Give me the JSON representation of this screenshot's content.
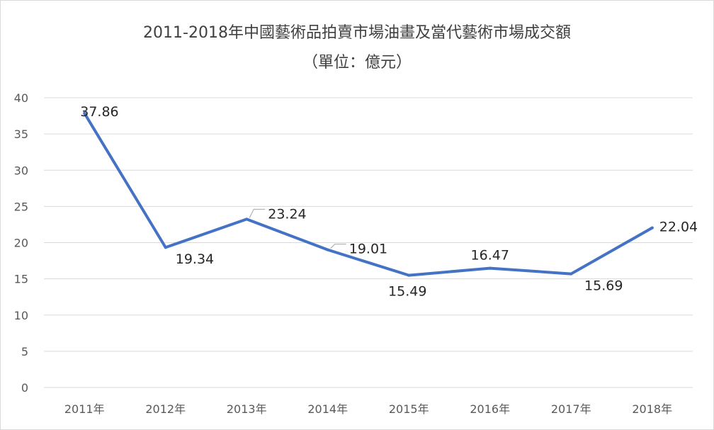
{
  "chart_data": {
    "type": "line",
    "title": "2011-2018年中國藝術品拍賣市場油畫及當代藝術市場成交額",
    "subtitle": "（單位：億元）",
    "categories": [
      "2011年",
      "2012年",
      "2013年",
      "2014年",
      "2015年",
      "2016年",
      "2017年",
      "2018年"
    ],
    "series": [
      {
        "values": [
          37.86,
          19.34,
          23.24,
          19.01,
          15.49,
          16.47,
          15.69,
          22.04
        ],
        "data_labels": [
          "37.86",
          "19.34",
          "23.24",
          "19.01",
          "15.49",
          "16.47",
          "15.69",
          "22.04"
        ],
        "color": "#4472c4"
      }
    ],
    "ylim": [
      0,
      40
    ],
    "y_ticks": [
      "0",
      "5",
      "10",
      "15",
      "20",
      "25",
      "30",
      "35",
      "40"
    ],
    "grid": true,
    "legend": "none",
    "colors": {
      "line": "#4472c4",
      "grid": "#d9d9d9",
      "axis_text": "#595959",
      "title_text": "#404040",
      "label_text": "#262626"
    }
  }
}
